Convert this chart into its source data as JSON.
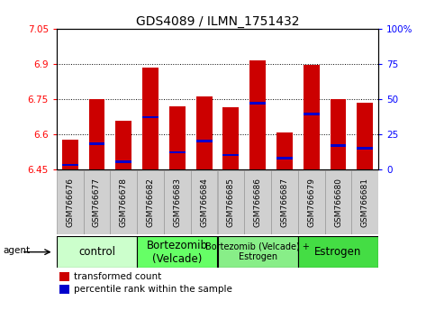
{
  "title": "GDS4089 / ILMN_1751432",
  "samples": [
    "GSM766676",
    "GSM766677",
    "GSM766678",
    "GSM766682",
    "GSM766683",
    "GSM766684",
    "GSM766685",
    "GSM766686",
    "GSM766687",
    "GSM766679",
    "GSM766680",
    "GSM766681"
  ],
  "transformed_count": [
    6.575,
    6.75,
    6.655,
    6.885,
    6.72,
    6.76,
    6.715,
    6.915,
    6.605,
    6.895,
    6.75,
    6.735
  ],
  "percentile_rank": [
    3,
    18,
    5,
    37,
    12,
    20,
    10,
    47,
    8,
    39,
    17,
    15
  ],
  "ymin": 6.45,
  "ymax": 7.05,
  "yticks": [
    6.45,
    6.6,
    6.75,
    6.9,
    7.05
  ],
  "ytick_labels": [
    "6.45",
    "6.6",
    "6.75",
    "6.9",
    "7.05"
  ],
  "y2min": 0,
  "y2max": 100,
  "y2ticks": [
    0,
    25,
    50,
    75,
    100
  ],
  "y2tick_labels": [
    "0",
    "25",
    "50",
    "75",
    "100%"
  ],
  "bar_color": "#cc0000",
  "blue_color": "#0000cc",
  "groups": [
    {
      "label": "control",
      "start": 0,
      "end": 3,
      "color": "#ccffcc",
      "fontsize": 8.5
    },
    {
      "label": "Bortezomib\n(Velcade)",
      "start": 3,
      "end": 6,
      "color": "#66ff66",
      "fontsize": 8.5
    },
    {
      "label": "Bortezomib (Velcade) +\nEstrogen",
      "start": 6,
      "end": 9,
      "color": "#88ee88",
      "fontsize": 7.0
    },
    {
      "label": "Estrogen",
      "start": 9,
      "end": 12,
      "color": "#44dd44",
      "fontsize": 8.5
    }
  ],
  "bar_width": 0.6,
  "title_fontsize": 10,
  "tick_fontsize": 7.5,
  "sample_fontsize": 6.5,
  "legend_red": "transformed count",
  "legend_blue": "percentile rank within the sample"
}
